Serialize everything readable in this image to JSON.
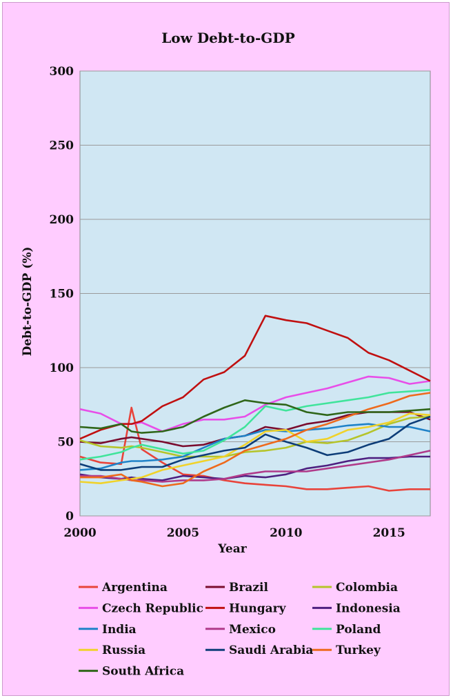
{
  "chart_data": {
    "type": "line",
    "title": "Low Debt-to-GDP",
    "xlabel": "Year",
    "ylabel": "Debt-to-GDP (%)",
    "xlim": [
      2000,
      2017
    ],
    "ylim": [
      0,
      300
    ],
    "xticks": [
      "2000",
      "2005",
      "2010",
      "2015"
    ],
    "yticks": [
      "0",
      "50",
      "100",
      "150",
      "200",
      "250",
      "300"
    ],
    "grid": true,
    "legend_position": "bottom",
    "background": "#d0e7f3",
    "x": [
      2000,
      2001,
      2002,
      2002.5,
      2003,
      2004,
      2005,
      2006,
      2007,
      2008,
      2009,
      2010,
      2011,
      2012,
      2013,
      2014,
      2015,
      2016,
      2017
    ],
    "series": [
      {
        "name": "Argentina",
        "color": "#e8433a",
        "values": [
          40,
          36,
          35,
          73,
          45,
          36,
          28,
          27,
          24,
          22,
          21,
          20,
          18,
          18,
          19,
          20,
          17,
          18,
          18
        ]
      },
      {
        "name": "Brazil",
        "color": "#7a0c2e",
        "values": [
          50,
          49,
          52,
          53,
          52,
          50,
          47,
          48,
          52,
          54,
          60,
          58,
          62,
          64,
          68,
          70,
          70,
          70,
          65
        ]
      },
      {
        "name": "Colombia",
        "color": "#b5c42a",
        "values": [
          51,
          47,
          46,
          47,
          46,
          43,
          40,
          40,
          40,
          43,
          44,
          46,
          50,
          49,
          51,
          56,
          62,
          66,
          67
        ]
      },
      {
        "name": "Czech Republic",
        "color": "#e84ee8",
        "values": [
          72,
          69,
          62,
          62,
          63,
          57,
          62,
          65,
          65,
          67,
          75,
          80,
          83,
          86,
          90,
          94,
          93,
          89,
          91
        ]
      },
      {
        "name": "Hungary",
        "color": "#c01010",
        "values": [
          52,
          58,
          62,
          62,
          64,
          74,
          80,
          92,
          97,
          108,
          135,
          132,
          130,
          125,
          120,
          110,
          105,
          98,
          91
        ]
      },
      {
        "name": "Indonesia",
        "color": "#4d1f80",
        "values": [
          28,
          26,
          25,
          26,
          25,
          24,
          27,
          26,
          25,
          27,
          26,
          28,
          32,
          34,
          37,
          39,
          39,
          40,
          40
        ]
      },
      {
        "name": "India",
        "color": "#1f82c8",
        "values": [
          31,
          32,
          36,
          37,
          37,
          38,
          40,
          46,
          52,
          54,
          58,
          57,
          58,
          59,
          61,
          62,
          60,
          60,
          57
        ]
      },
      {
        "name": "Mexico",
        "color": "#b03a8a",
        "values": [
          27,
          27,
          25,
          24,
          24,
          23,
          24,
          24,
          25,
          28,
          30,
          30,
          30,
          32,
          34,
          36,
          38,
          41,
          44
        ]
      },
      {
        "name": "Poland",
        "color": "#40e49b",
        "values": [
          38,
          40,
          43,
          46,
          48,
          45,
          42,
          44,
          51,
          60,
          74,
          71,
          74,
          76,
          78,
          80,
          83,
          84,
          85
        ]
      },
      {
        "name": "Russia",
        "color": "#f0d22a",
        "values": [
          23,
          22,
          24,
          25,
          26,
          31,
          34,
          37,
          40,
          48,
          57,
          58,
          50,
          52,
          58,
          60,
          63,
          69,
          68
        ]
      },
      {
        "name": "Saudi Arabia",
        "color": "#0d3d78",
        "values": [
          35,
          31,
          31,
          32,
          33,
          33,
          38,
          41,
          44,
          46,
          55,
          50,
          46,
          41,
          43,
          48,
          52,
          62,
          67
        ]
      },
      {
        "name": "Turkey",
        "color": "#ee6a1c",
        "values": [
          26,
          26,
          28,
          24,
          23,
          20,
          22,
          30,
          36,
          44,
          48,
          52,
          58,
          62,
          67,
          72,
          76,
          81,
          83
        ]
      },
      {
        "name": "South Africa",
        "color": "#2f6619",
        "values": [
          60,
          59,
          62,
          57,
          56,
          57,
          60,
          67,
          73,
          78,
          76,
          75,
          70,
          68,
          70,
          70,
          70,
          71,
          72
        ]
      }
    ]
  }
}
